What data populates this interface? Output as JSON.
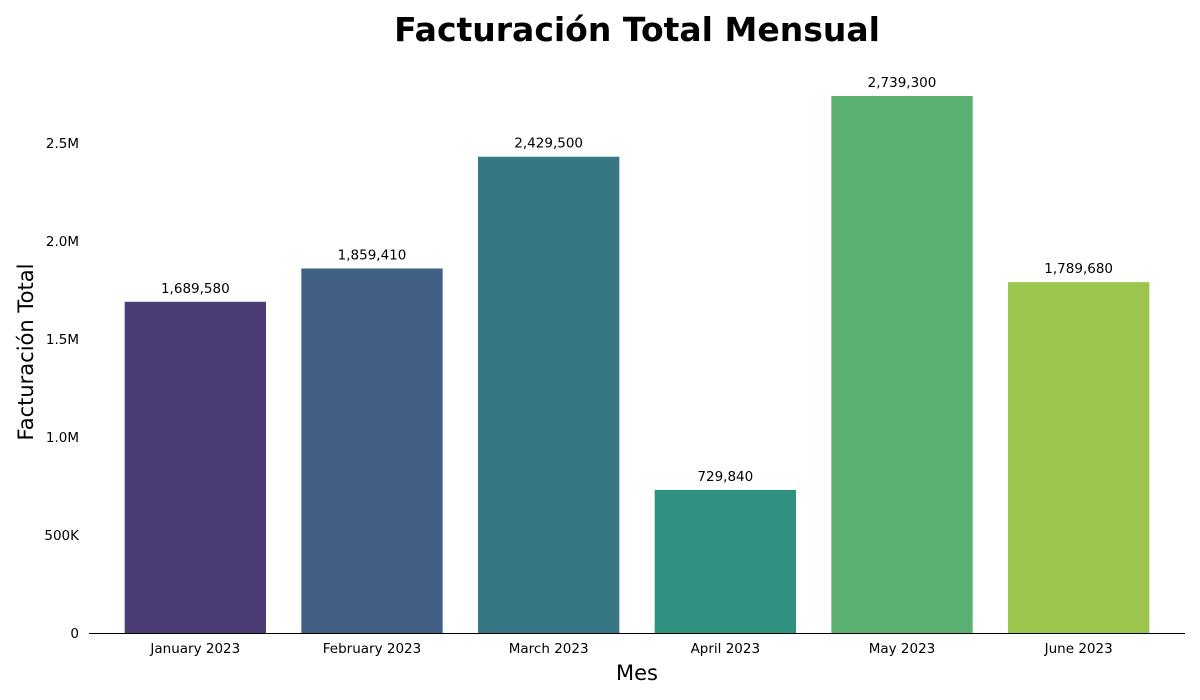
{
  "chart_data": {
    "type": "bar",
    "title": "Facturación Total Mensual",
    "xlabel": "Mes",
    "ylabel": "Facturación Total",
    "categories": [
      "January 2023",
      "February 2023",
      "March 2023",
      "April 2023",
      "May 2023",
      "June 2023"
    ],
    "values": [
      1689580,
      1859410,
      2429500,
      729840,
      2739300,
      1789680
    ],
    "value_labels": [
      "1,689,580",
      "1,859,410",
      "2,429,500",
      "729,840",
      "2,739,300",
      "1,789,680"
    ],
    "colors": [
      "#4b3c75",
      "#425f84",
      "#357783",
      "#319180",
      "#5ab172",
      "#9bc54d"
    ],
    "y_ticks": [
      0,
      500000,
      1000000,
      1500000,
      2000000,
      2500000
    ],
    "y_tick_labels": [
      "0",
      "500K",
      "1.0M",
      "1.5M",
      "2.0M",
      "2.5M"
    ],
    "ylim": [
      0,
      2739300
    ],
    "grid": false,
    "legend": "none"
  }
}
